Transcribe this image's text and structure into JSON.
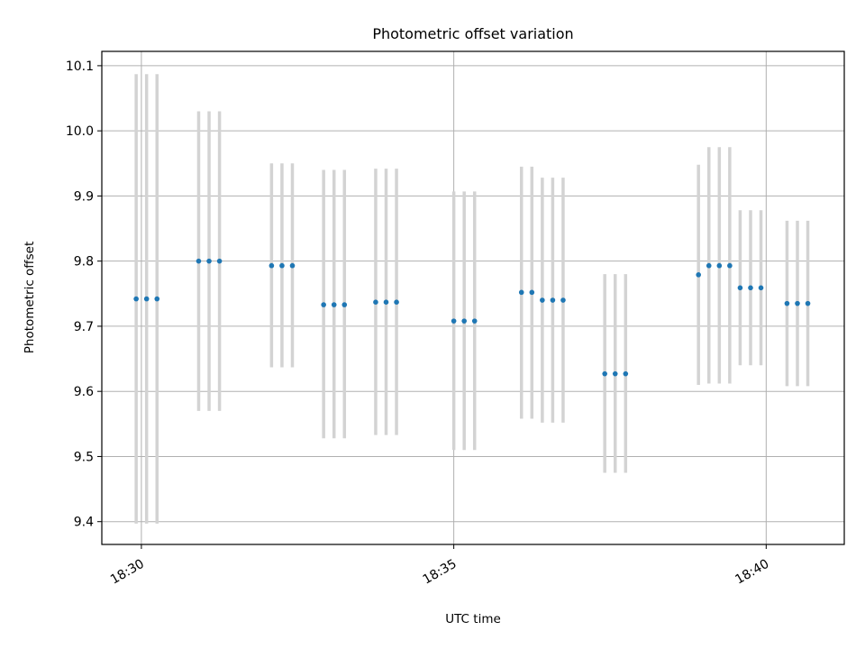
{
  "chart_data": {
    "type": "scatter",
    "title": "Photometric offset variation",
    "xlabel": "UTC time",
    "ylabel": "Photometric offset",
    "grid": true,
    "x_tick_labels": [
      "18:30",
      "18:35",
      "18:40"
    ],
    "x_tick_minutes": [
      "18:30",
      "18:35",
      "18:40"
    ],
    "xlim": [
      "18:29:22",
      "18:41:15"
    ],
    "ylim": [
      9.365,
      10.122
    ],
    "y_ticks": [
      9.4,
      9.5,
      9.6,
      9.7,
      9.8,
      9.9,
      10.0,
      10.1
    ],
    "point_color": "#1f77b4",
    "errorbar_color": "#d3d3d3",
    "points": [
      {
        "time": "18:29:55",
        "y": 9.742,
        "low": 9.397,
        "high": 10.087
      },
      {
        "time": "18:30:05",
        "y": 9.742,
        "low": 9.397,
        "high": 10.087
      },
      {
        "time": "18:30:15",
        "y": 9.742,
        "low": 9.397,
        "high": 10.087
      },
      {
        "time": "18:30:55",
        "y": 9.8,
        "low": 9.57,
        "high": 10.03
      },
      {
        "time": "18:31:05",
        "y": 9.8,
        "low": 9.57,
        "high": 10.03
      },
      {
        "time": "18:31:15",
        "y": 9.8,
        "low": 9.57,
        "high": 10.03
      },
      {
        "time": "18:32:05",
        "y": 9.793,
        "low": 9.637,
        "high": 9.95
      },
      {
        "time": "18:32:15",
        "y": 9.793,
        "low": 9.637,
        "high": 9.95
      },
      {
        "time": "18:32:25",
        "y": 9.793,
        "low": 9.637,
        "high": 9.95
      },
      {
        "time": "18:32:55",
        "y": 9.733,
        "low": 9.528,
        "high": 9.94
      },
      {
        "time": "18:33:05",
        "y": 9.733,
        "low": 9.528,
        "high": 9.94
      },
      {
        "time": "18:33:15",
        "y": 9.733,
        "low": 9.528,
        "high": 9.94
      },
      {
        "time": "18:33:45",
        "y": 9.737,
        "low": 9.533,
        "high": 9.942
      },
      {
        "time": "18:33:55",
        "y": 9.737,
        "low": 9.533,
        "high": 9.942
      },
      {
        "time": "18:34:05",
        "y": 9.737,
        "low": 9.533,
        "high": 9.942
      },
      {
        "time": "18:35:00",
        "y": 9.708,
        "low": 9.51,
        "high": 9.907
      },
      {
        "time": "18:35:10",
        "y": 9.708,
        "low": 9.51,
        "high": 9.907
      },
      {
        "time": "18:35:20",
        "y": 9.708,
        "low": 9.51,
        "high": 9.907
      },
      {
        "time": "18:36:05",
        "y": 9.752,
        "low": 9.558,
        "high": 9.945
      },
      {
        "time": "18:36:15",
        "y": 9.752,
        "low": 9.558,
        "high": 9.945
      },
      {
        "time": "18:36:25",
        "y": 9.74,
        "low": 9.552,
        "high": 9.928
      },
      {
        "time": "18:36:35",
        "y": 9.74,
        "low": 9.552,
        "high": 9.928
      },
      {
        "time": "18:36:45",
        "y": 9.74,
        "low": 9.552,
        "high": 9.928
      },
      {
        "time": "18:37:25",
        "y": 9.627,
        "low": 9.475,
        "high": 9.78
      },
      {
        "time": "18:37:35",
        "y": 9.627,
        "low": 9.475,
        "high": 9.78
      },
      {
        "time": "18:37:45",
        "y": 9.627,
        "low": 9.475,
        "high": 9.78
      },
      {
        "time": "18:38:55",
        "y": 9.779,
        "low": 9.61,
        "high": 9.948
      },
      {
        "time": "18:39:05",
        "y": 9.793,
        "low": 9.612,
        "high": 9.975
      },
      {
        "time": "18:39:15",
        "y": 9.793,
        "low": 9.612,
        "high": 9.975
      },
      {
        "time": "18:39:25",
        "y": 9.793,
        "low": 9.612,
        "high": 9.975
      },
      {
        "time": "18:39:35",
        "y": 9.759,
        "low": 9.64,
        "high": 9.878
      },
      {
        "time": "18:39:45",
        "y": 9.759,
        "low": 9.64,
        "high": 9.878
      },
      {
        "time": "18:39:55",
        "y": 9.759,
        "low": 9.64,
        "high": 9.878
      },
      {
        "time": "18:40:20",
        "y": 9.735,
        "low": 9.608,
        "high": 9.862
      },
      {
        "time": "18:40:30",
        "y": 9.735,
        "low": 9.608,
        "high": 9.862
      },
      {
        "time": "18:40:40",
        "y": 9.735,
        "low": 9.608,
        "high": 9.862
      }
    ]
  }
}
